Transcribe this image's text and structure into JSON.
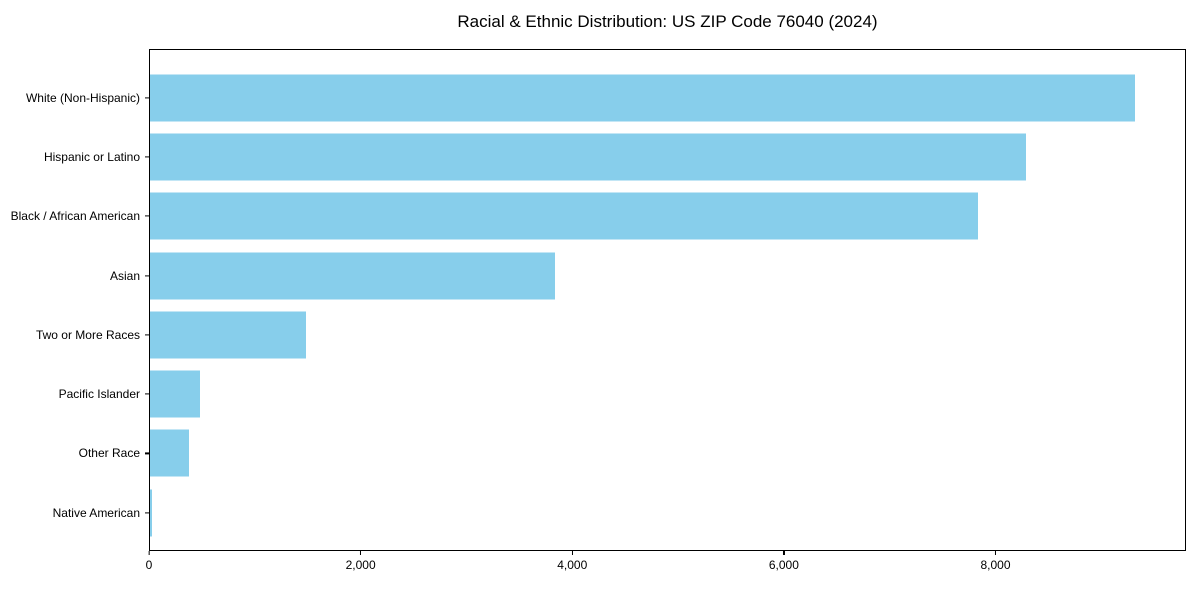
{
  "figure": {
    "background": "#ffffff",
    "text_color": "#000000",
    "spine_color": "#000000"
  },
  "chart_data": {
    "type": "bar",
    "orientation": "horizontal",
    "title": "Racial & Ethnic Distribution: US ZIP Code 76040 (2024)",
    "xlabel": "",
    "ylabel": "",
    "categories": [
      "White (Non-Hispanic)",
      "Hispanic or Latino",
      "Black / African American",
      "Asian",
      "Two or More Races",
      "Pacific Islander",
      "Other Race",
      "Native American"
    ],
    "values": [
      9320,
      8290,
      7830,
      3830,
      1480,
      470,
      365,
      15
    ],
    "bar_color": "#87CEEB",
    "xlim": [
      0,
      9800
    ],
    "x_ticks": [
      {
        "value": 0,
        "label": "0"
      },
      {
        "value": 2000,
        "label": "2,000"
      },
      {
        "value": 4000,
        "label": "4,000"
      },
      {
        "value": 6000,
        "label": "6,000"
      },
      {
        "value": 8000,
        "label": "8,000"
      }
    ],
    "grid": false,
    "legend": null
  }
}
